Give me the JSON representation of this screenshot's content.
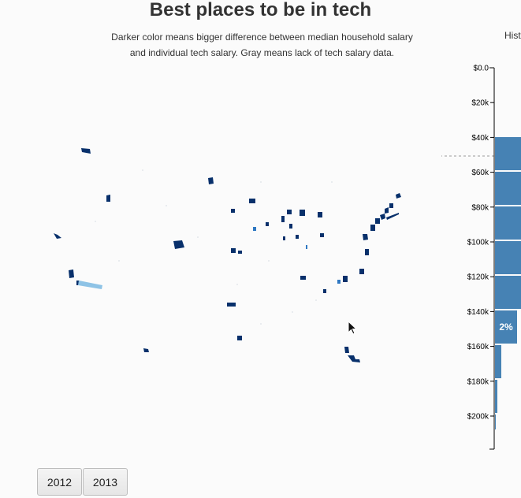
{
  "title": "Best places to be in tech",
  "subtitle_line1": "Darker color means bigger difference between median household salary",
  "subtitle_line2": "and individual tech salary. Gray means lack of tech salary data.",
  "histogram_title_cut": "Hist",
  "histogram": {
    "ticks": [
      "$0.0",
      "$20k",
      "$40k",
      "$60k",
      "$80k",
      "$100k",
      "$120k",
      "$140k",
      "$160k",
      "$180k",
      "$200k"
    ],
    "highlight_label": "2%",
    "bar_color": "#4682b4"
  },
  "colors": {
    "dark": "#08306b",
    "mid": "#2f78c2",
    "light": "#8ec3e6"
  },
  "buttons": {
    "year_2012": "2012",
    "year_2013": "2013"
  },
  "icons": {
    "cursor": "arrow-cursor-icon"
  }
}
